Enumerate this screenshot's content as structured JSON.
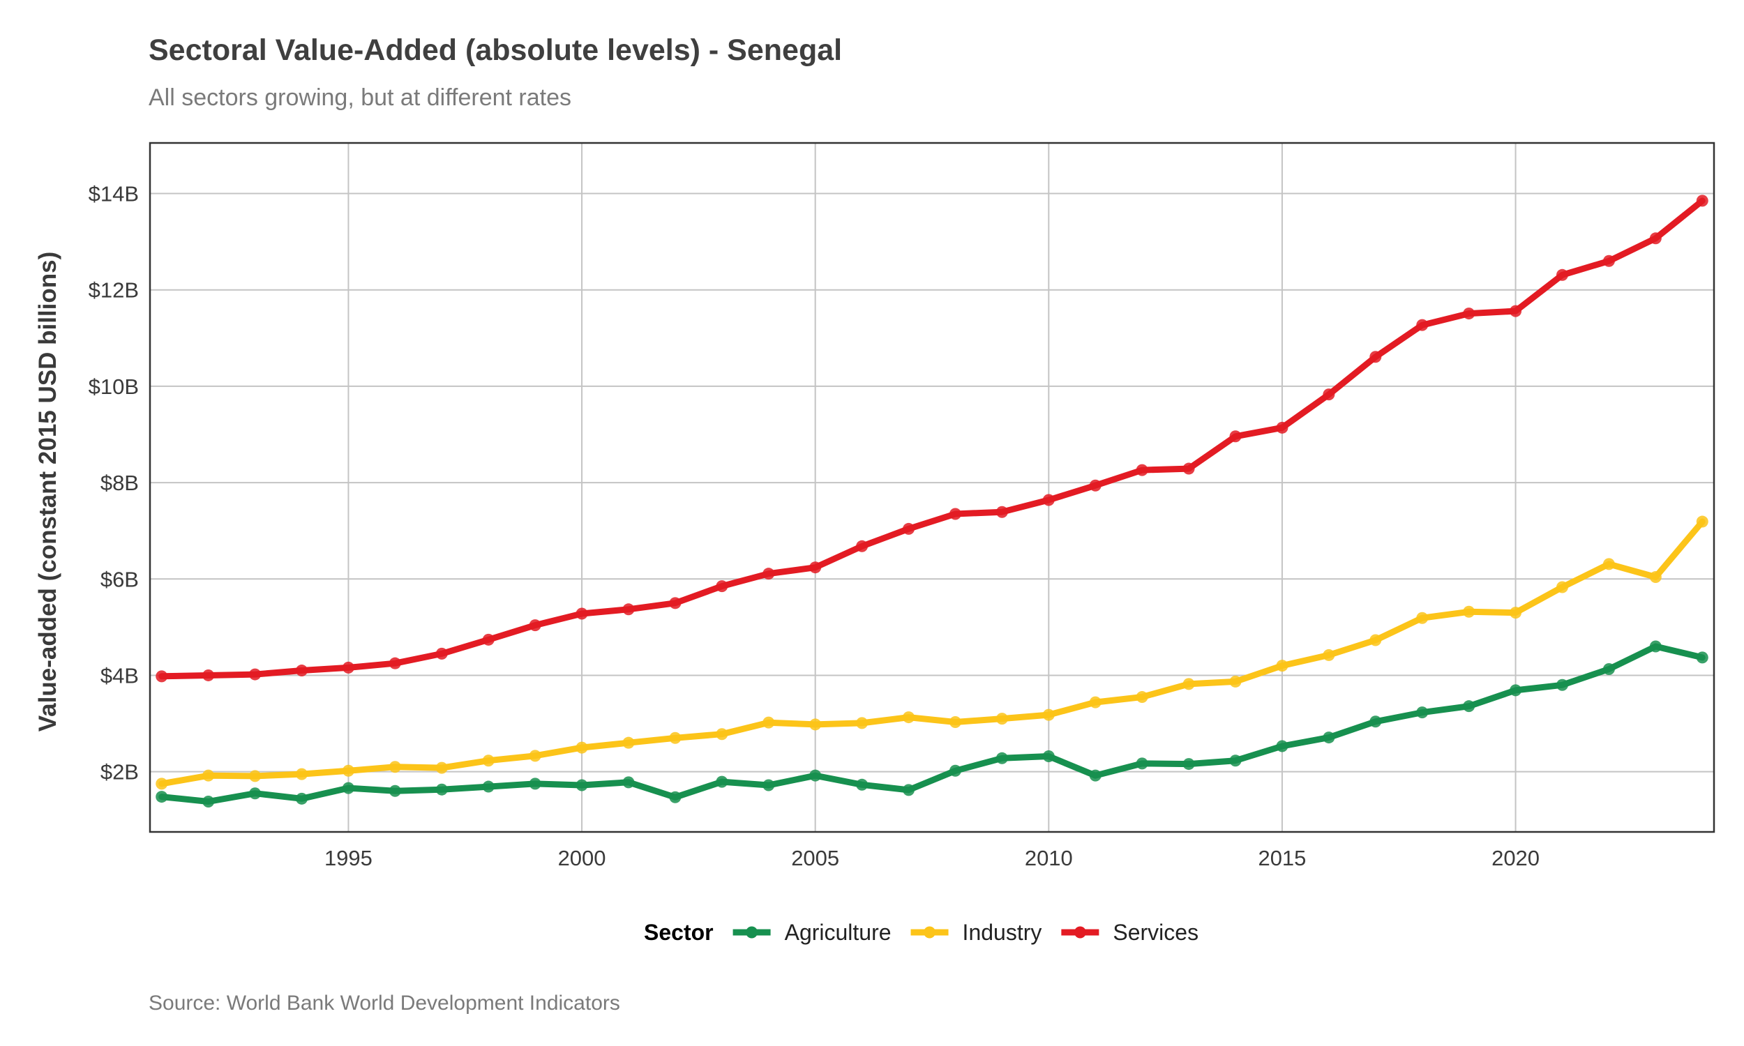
{
  "chart_data": {
    "type": "line",
    "title": "Sectoral Value-Added (absolute levels) - Senegal",
    "subtitle": "All sectors growing, but at different rates",
    "caption": "Source: World Bank World Development Indicators",
    "xlabel": "",
    "ylabel": "Value-added (constant 2015 USD billions)",
    "xlim": [
      1990.75,
      2024.25
    ],
    "ylim": [
      0.75,
      15.05
    ],
    "x_ticks": [
      1995,
      2000,
      2005,
      2010,
      2015,
      2020
    ],
    "x_tick_labels": [
      "1995",
      "2000",
      "2005",
      "2010",
      "2015",
      "2020"
    ],
    "y_ticks": [
      2,
      4,
      6,
      8,
      10,
      12,
      14
    ],
    "y_tick_labels": [
      "$2B",
      "$4B",
      "$6B",
      "$8B",
      "$10B",
      "$12B",
      "$14B"
    ],
    "grid": true,
    "legend_title": "Sector",
    "legend_position": "bottom",
    "x": [
      1991,
      1992,
      1993,
      1994,
      1995,
      1996,
      1997,
      1998,
      1999,
      2000,
      2001,
      2002,
      2003,
      2004,
      2005,
      2006,
      2007,
      2008,
      2009,
      2010,
      2011,
      2012,
      2013,
      2014,
      2015,
      2016,
      2017,
      2018,
      2019,
      2020,
      2021,
      2022,
      2023,
      2024
    ],
    "series": [
      {
        "name": "Agriculture",
        "color": "#17904f",
        "values": [
          1.48,
          1.38,
          1.55,
          1.44,
          1.66,
          1.6,
          1.63,
          1.69,
          1.75,
          1.72,
          1.78,
          1.47,
          1.79,
          1.72,
          1.92,
          1.73,
          1.62,
          2.02,
          2.28,
          2.32,
          1.92,
          2.17,
          2.16,
          2.23,
          2.53,
          2.71,
          3.04,
          3.23,
          3.36,
          3.69,
          3.8,
          4.13,
          4.6,
          4.37
        ]
      },
      {
        "name": "Industry",
        "color": "#fcc419",
        "values": [
          1.75,
          1.92,
          1.91,
          1.95,
          2.02,
          2.1,
          2.08,
          2.23,
          2.33,
          2.5,
          2.6,
          2.7,
          2.78,
          3.02,
          2.98,
          3.01,
          3.13,
          3.03,
          3.1,
          3.18,
          3.44,
          3.55,
          3.82,
          3.87,
          4.2,
          4.42,
          4.73,
          5.19,
          5.32,
          5.3,
          5.83,
          6.31,
          6.04,
          7.19
        ]
      },
      {
        "name": "Services",
        "color": "#e31b23",
        "values": [
          3.98,
          4.0,
          4.02,
          4.1,
          4.16,
          4.25,
          4.45,
          4.74,
          5.04,
          5.28,
          5.37,
          5.5,
          5.85,
          6.11,
          6.24,
          6.68,
          7.04,
          7.35,
          7.39,
          7.64,
          7.94,
          8.26,
          8.29,
          8.96,
          9.14,
          9.83,
          10.61,
          11.27,
          11.51,
          11.56,
          12.31,
          12.6,
          13.07,
          13.85
        ]
      }
    ]
  }
}
